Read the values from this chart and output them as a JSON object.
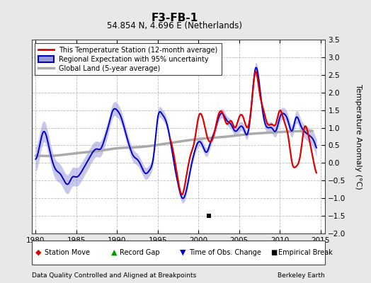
{
  "title": "F3-FB-1",
  "subtitle": "54.854 N, 4.696 E (Netherlands)",
  "ylabel": "Temperature Anomaly (°C)",
  "xlabel_left": "Data Quality Controlled and Aligned at Breakpoints",
  "xlabel_right": "Berkeley Earth",
  "xlim": [
    1979.5,
    2015.5
  ],
  "ylim": [
    -2.0,
    3.5
  ],
  "yticks": [
    -2,
    -1.5,
    -1,
    -0.5,
    0,
    0.5,
    1,
    1.5,
    2,
    2.5,
    3,
    3.5
  ],
  "xticks": [
    1980,
    1985,
    1990,
    1995,
    2000,
    2005,
    2010,
    2015
  ],
  "background_color": "#e8e8e8",
  "plot_bg_color": "#ffffff",
  "grid_color": "#bbbbbb",
  "station_color": "#dd0000",
  "regional_color": "#0000cc",
  "regional_fill_color": "#9999dd",
  "global_color": "#aaaaaa",
  "legend_labels": [
    "This Temperature Station (12-month average)",
    "Regional Expectation with 95% uncertainty",
    "Global Land (5-year average)"
  ],
  "empirical_break_year": 2001.25,
  "empirical_break_y": -1.5,
  "regional_x": [
    1980.0,
    1980.5,
    1981.0,
    1981.5,
    1982.0,
    1982.5,
    1983.0,
    1983.5,
    1984.0,
    1984.5,
    1985.0,
    1985.5,
    1986.0,
    1986.5,
    1987.0,
    1987.5,
    1988.0,
    1988.5,
    1989.0,
    1989.5,
    1990.0,
    1990.5,
    1991.0,
    1991.5,
    1992.0,
    1992.5,
    1993.0,
    1993.5,
    1994.0,
    1994.5,
    1995.0,
    1995.5,
    1996.0,
    1996.5,
    1997.0,
    1997.5,
    1998.0,
    1998.5,
    1999.0,
    1999.5,
    2000.0,
    2000.5,
    2001.0,
    2001.5,
    2002.0,
    2002.5,
    2003.0,
    2003.5,
    2004.0,
    2004.5,
    2005.0,
    2005.5,
    2006.0,
    2006.5,
    2007.0,
    2007.5,
    2008.0,
    2008.5,
    2009.0,
    2009.5,
    2010.0,
    2010.5,
    2011.0,
    2011.5,
    2012.0,
    2012.5,
    2013.0,
    2013.5,
    2014.0,
    2014.5
  ],
  "regional_y": [
    0.1,
    0.5,
    0.9,
    0.6,
    0.1,
    -0.2,
    -0.3,
    -0.5,
    -0.6,
    -0.4,
    -0.4,
    -0.3,
    -0.1,
    0.1,
    0.3,
    0.4,
    0.4,
    0.7,
    1.1,
    1.5,
    1.5,
    1.3,
    0.9,
    0.5,
    0.2,
    0.1,
    -0.1,
    -0.3,
    -0.2,
    0.2,
    1.3,
    1.4,
    1.2,
    0.7,
    0.0,
    -0.6,
    -1.0,
    -0.8,
    -0.2,
    0.3,
    0.6,
    0.5,
    0.3,
    0.6,
    0.9,
    1.3,
    1.4,
    1.2,
    1.1,
    0.9,
    1.0,
    1.0,
    0.8,
    1.6,
    2.7,
    2.2,
    1.3,
    1.0,
    1.0,
    0.9,
    1.3,
    1.4,
    1.2,
    0.9,
    1.3,
    1.1,
    0.9,
    0.8,
    0.7,
    0.4
  ],
  "regional_unc": [
    0.35,
    0.35,
    0.3,
    0.28,
    0.28,
    0.28,
    0.27,
    0.27,
    0.27,
    0.27,
    0.26,
    0.26,
    0.25,
    0.25,
    0.24,
    0.22,
    0.22,
    0.22,
    0.21,
    0.2,
    0.2,
    0.19,
    0.18,
    0.18,
    0.18,
    0.17,
    0.17,
    0.17,
    0.16,
    0.16,
    0.15,
    0.15,
    0.15,
    0.15,
    0.14,
    0.14,
    0.13,
    0.13,
    0.13,
    0.13,
    0.13,
    0.13,
    0.13,
    0.13,
    0.13,
    0.13,
    0.13,
    0.13,
    0.13,
    0.13,
    0.13,
    0.13,
    0.13,
    0.14,
    0.14,
    0.15,
    0.15,
    0.16,
    0.16,
    0.16,
    0.17,
    0.17,
    0.17,
    0.18,
    0.18,
    0.18,
    0.19,
    0.2,
    0.22,
    0.25
  ],
  "station_x": [
    1996.5,
    1997.0,
    1997.5,
    1998.0,
    1998.5,
    1999.0,
    1999.5,
    2000.0,
    2000.5,
    2001.0,
    2001.5,
    2002.0,
    2002.5,
    2003.0,
    2003.5,
    2004.0,
    2004.5,
    2005.0,
    2005.5,
    2006.0,
    2006.5,
    2007.0,
    2007.5,
    2008.0,
    2008.5,
    2009.0,
    2009.5,
    2010.0,
    2010.5,
    2011.0,
    2011.5,
    2012.0,
    2012.5,
    2013.0,
    2013.5,
    2014.0,
    2014.5
  ],
  "station_y": [
    0.7,
    0.2,
    -0.5,
    -0.9,
    -0.4,
    0.2,
    0.6,
    1.3,
    1.3,
    0.8,
    0.6,
    0.9,
    1.4,
    1.4,
    1.1,
    1.2,
    1.0,
    1.3,
    1.3,
    1.0,
    1.6,
    2.6,
    2.0,
    1.5,
    1.1,
    1.1,
    1.1,
    1.5,
    1.2,
    0.8,
    0.0,
    -0.1,
    0.2,
    1.0,
    0.8,
    0.2,
    -0.3
  ],
  "global_x": [
    1980,
    1982,
    1984,
    1986,
    1988,
    1990,
    1992,
    1994,
    1996,
    1998,
    2000,
    2002,
    2004,
    2006,
    2008,
    2010,
    2012,
    2014
  ],
  "global_y": [
    0.22,
    0.2,
    0.25,
    0.3,
    0.35,
    0.42,
    0.44,
    0.48,
    0.55,
    0.62,
    0.68,
    0.72,
    0.76,
    0.82,
    0.85,
    0.88,
    0.9,
    0.91
  ]
}
